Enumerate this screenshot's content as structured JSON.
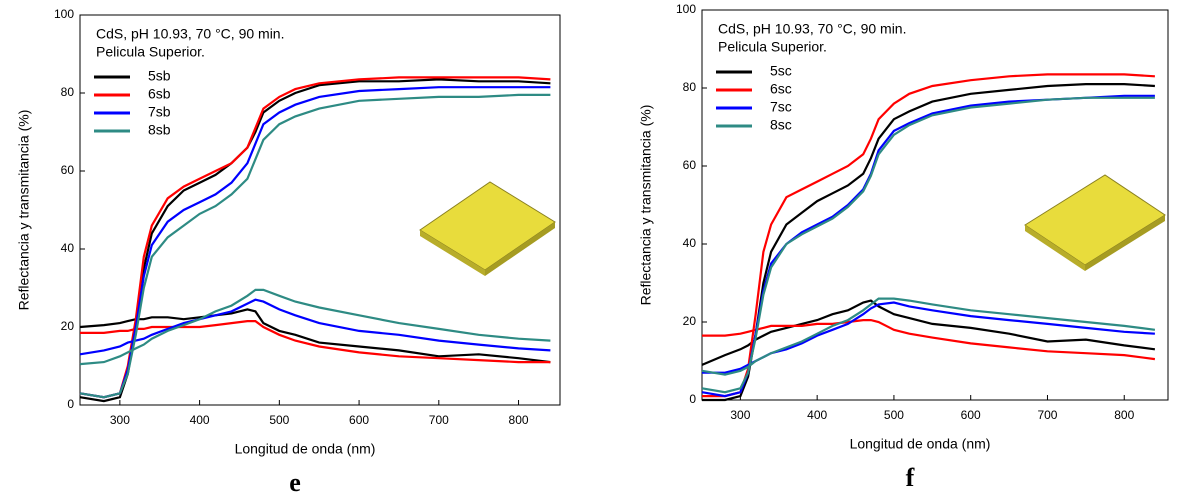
{
  "chart_data": [
    {
      "type": "line",
      "panel_label": "e",
      "annotation": [
        "CdS, pH 10.93, 70 °C, 90 min.",
        "Pelicula Superior."
      ],
      "x_label": "Longitud de onda (nm)",
      "y_label": "Reflectancia y transmitancia (%)",
      "xlim": [
        250,
        852
      ],
      "ylim": [
        0,
        100
      ],
      "xticks": [
        300,
        400,
        500,
        600,
        700,
        800
      ],
      "yticks": [
        0,
        20,
        40,
        60,
        80,
        100
      ],
      "x": [
        250,
        280,
        300,
        310,
        320,
        330,
        340,
        360,
        380,
        400,
        420,
        440,
        460,
        470,
        480,
        500,
        520,
        550,
        600,
        650,
        700,
        750,
        800,
        840
      ],
      "series": [
        {
          "name": "5sb",
          "color": "#000000",
          "values": [
            2,
            1,
            2,
            8,
            20,
            35,
            44,
            51,
            55,
            57,
            59,
            62,
            66,
            70,
            75,
            78,
            80,
            82,
            83,
            83,
            83.5,
            83,
            83,
            82.5
          ],
          "values_reflectance": [
            20,
            20.5,
            21,
            21.5,
            22,
            22,
            22.5,
            22.5,
            22,
            22.5,
            23,
            23.5,
            24.5,
            24,
            21,
            19,
            18,
            16,
            15,
            14,
            12.5,
            13,
            12,
            11
          ]
        },
        {
          "name": "6sb",
          "color": "#ff0000",
          "values": [
            3,
            2,
            3,
            10,
            22,
            38,
            46,
            53,
            56,
            58,
            60,
            62,
            66,
            71,
            76,
            79,
            81,
            82.5,
            83.5,
            84,
            84,
            84,
            84,
            83.5
          ],
          "values_reflectance": [
            18.5,
            18.5,
            19,
            19,
            19.5,
            19.5,
            20,
            20,
            20,
            20,
            20.5,
            21,
            21.5,
            21.5,
            20,
            18,
            16.5,
            15,
            13.5,
            12.5,
            12,
            11.5,
            11,
            11
          ]
        },
        {
          "name": "7sb",
          "color": "#0000ff",
          "values": [
            3,
            2,
            3,
            9,
            20,
            33,
            41,
            47,
            50,
            52,
            54,
            57,
            62,
            67,
            72,
            75,
            77,
            79,
            80.5,
            81,
            81.5,
            81.5,
            81.5,
            81.5
          ],
          "values_reflectance": [
            13,
            14,
            15,
            16,
            16.5,
            17,
            18,
            19.5,
            21,
            22,
            23,
            24,
            26,
            27,
            26.5,
            24.5,
            23,
            21,
            19,
            18,
            16.5,
            15.5,
            14.5,
            14
          ]
        },
        {
          "name": "8sb",
          "color": "#2e8b84",
          "values": [
            3,
            2,
            3,
            8,
            18,
            30,
            38,
            43,
            46,
            49,
            51,
            54,
            58,
            63,
            68,
            72,
            74,
            76,
            78,
            78.5,
            79,
            79,
            79.5,
            79.5
          ],
          "values_reflectance": [
            10.5,
            11,
            12.5,
            13.5,
            14.5,
            15.5,
            17,
            19,
            20.5,
            22,
            24,
            25.5,
            28,
            29.5,
            29.5,
            28,
            26.5,
            25,
            23,
            21,
            19.5,
            18,
            17,
            16.5
          ]
        }
      ]
    },
    {
      "type": "line",
      "panel_label": "f",
      "annotation": [
        "CdS, pH 10.93, 70 °C, 90 min.",
        "Pelicula Superior."
      ],
      "x_label": "Longitud de onda (nm)",
      "y_label": "Reflectancia y transmitancia (%)",
      "xlim": [
        250,
        857
      ],
      "ylim": [
        0,
        100
      ],
      "xticks": [
        300,
        400,
        500,
        600,
        700,
        800
      ],
      "yticks": [
        0,
        20,
        40,
        60,
        80,
        100
      ],
      "x": [
        250,
        280,
        300,
        310,
        320,
        330,
        340,
        360,
        380,
        400,
        420,
        440,
        460,
        470,
        480,
        500,
        520,
        550,
        600,
        650,
        700,
        750,
        800,
        840
      ],
      "series": [
        {
          "name": "5sc",
          "color": "#000000",
          "values": [
            0,
            0,
            1,
            6,
            17,
            30,
            38,
            45,
            48,
            51,
            53,
            55,
            58,
            62,
            67,
            72,
            74,
            76.5,
            78.5,
            79.5,
            80.5,
            81,
            81,
            80.5
          ],
          "values_reflectance": [
            9,
            11.5,
            13,
            14,
            15.5,
            16.5,
            17.5,
            18.5,
            19.5,
            20.5,
            22,
            23,
            25,
            25.5,
            24,
            22,
            21,
            19.5,
            18.5,
            17,
            15,
            15.5,
            14,
            13
          ]
        },
        {
          "name": "6sc",
          "color": "#ff0000",
          "values": [
            1,
            1,
            2,
            8,
            22,
            38,
            45,
            52,
            54,
            56,
            58,
            60,
            63,
            67,
            72,
            76,
            78.5,
            80.5,
            82,
            83,
            83.5,
            83.5,
            83.5,
            83
          ],
          "values_reflectance": [
            16.5,
            16.5,
            17,
            17.5,
            18,
            18.5,
            19,
            19,
            19,
            19.5,
            19.5,
            20,
            20.5,
            20.5,
            20,
            18,
            17,
            16,
            14.5,
            13.5,
            12.5,
            12,
            11.5,
            10.5
          ]
        },
        {
          "name": "7sc",
          "color": "#0000ff",
          "values": [
            2,
            1,
            2,
            7,
            17,
            28,
            35,
            40,
            43,
            45,
            47,
            50,
            54,
            58,
            64,
            69,
            71,
            73.5,
            75.5,
            76.5,
            77,
            77.5,
            78,
            78
          ],
          "values_reflectance": [
            7,
            7,
            8,
            9,
            10,
            11,
            12,
            13,
            14.5,
            16.5,
            18,
            19.5,
            22,
            23.5,
            24.5,
            25,
            24,
            23,
            21.5,
            20.5,
            19.5,
            18.5,
            17.5,
            17
          ]
        },
        {
          "name": "8sc",
          "color": "#2e8b84",
          "values": [
            3,
            2,
            3,
            7,
            16,
            27,
            34,
            40,
            42.5,
            44.5,
            46.5,
            49.5,
            53.5,
            57.5,
            63,
            68,
            70.5,
            73,
            75,
            76,
            77,
            77.5,
            77.5,
            77.5
          ],
          "values_reflectance": [
            7.5,
            6.5,
            7.5,
            8.5,
            10,
            11,
            12,
            13.5,
            15,
            17,
            19,
            20.5,
            23,
            24.5,
            26,
            26,
            25.5,
            24.5,
            23,
            22,
            21,
            20,
            19,
            18
          ]
        }
      ]
    }
  ]
}
